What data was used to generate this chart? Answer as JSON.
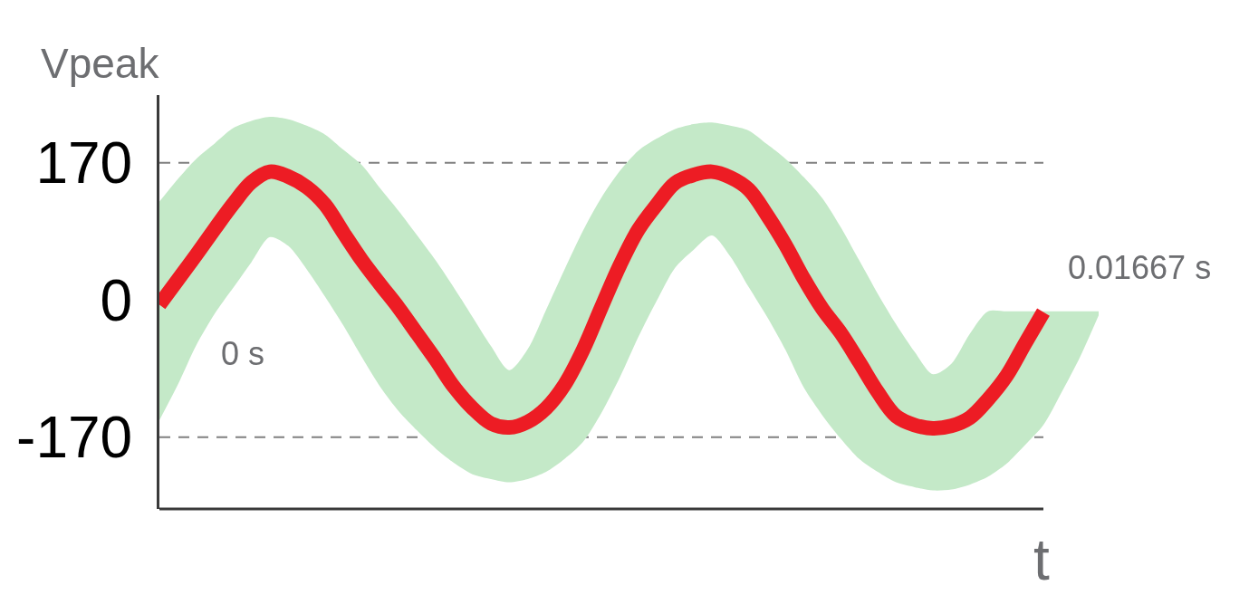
{
  "chart_data": {
    "type": "line",
    "xlabel": "t",
    "ylabel": "Vpeak",
    "categories": [
      null,
      null,
      null,
      null,
      null,
      null,
      null,
      null,
      null,
      null,
      null,
      null,
      null,
      null,
      null,
      null,
      null,
      null,
      null,
      null,
      null,
      null,
      null,
      null,
      null,
      null,
      null,
      null,
      null,
      null,
      null,
      null,
      null,
      null,
      null,
      null,
      null,
      null,
      null,
      null,
      null,
      null,
      null,
      null,
      null,
      null,
      null,
      null,
      null,
      null,
      null,
      null
    ],
    "series": [
      {
        "color": "#ed1c24",
        "values": [
          -6,
          25,
          56,
          88,
          119,
          146,
          159,
          153,
          140,
          118,
          83,
          49,
          19,
          -10,
          -42,
          -74,
          -108,
          -134,
          -153,
          -158,
          -151,
          -134,
          -105,
          -62,
          -9,
          43,
          87,
          118,
          145,
          155,
          159,
          152,
          137,
          105,
          68,
          26,
          -11,
          -41,
          -77,
          -114,
          -144,
          -155,
          -159,
          -156,
          -146,
          -123,
          -94,
          -54,
          -15,
          null,
          null,
          null
        ],
        "upper": [
          122,
          150,
          175,
          194,
          213,
          222,
          227,
          224,
          216,
          205,
          186,
          167,
          138,
          110,
          80,
          49,
          15,
          -21,
          -57,
          -87,
          -61,
          -12,
          38,
          86,
          127,
          160,
          185,
          200,
          212,
          218,
          220,
          216,
          210,
          193,
          175,
          152,
          126,
          90,
          49,
          8,
          -30,
          -64,
          -92,
          -79,
          -42,
          -14,
          -14,
          -14,
          -14,
          -14,
          -14,
          -14
        ],
        "lower": [
          -149,
          -105,
          -56,
          -17,
          15,
          47,
          78,
          67,
          38,
          4,
          -32,
          -71,
          -108,
          -138,
          -162,
          -184,
          -202,
          -216,
          -222,
          -226,
          -222,
          -213,
          -197,
          -176,
          -140,
          -96,
          -46,
          -1,
          40,
          62,
          80,
          54,
          16,
          -21,
          -62,
          -109,
          -143,
          -172,
          -197,
          -213,
          -226,
          -232,
          -236,
          -235,
          -229,
          -219,
          -203,
          -180,
          -155,
          -114,
          -70,
          -19
        ]
      }
    ],
    "ylim": [
      -259,
      254
    ],
    "yticks": [
      -170,
      0,
      170
    ],
    "ref_lines": [
      {
        "axis": "y",
        "value": 170,
        "color": "#808080",
        "line_style": "dashed"
      },
      {
        "axis": "y",
        "value": -170,
        "color": "#808080",
        "line_style": "dashed"
      }
    ],
    "annotations": [
      "0 s",
      "0.01667 s"
    ],
    "tick_labels": "y",
    "grid": false
  }
}
